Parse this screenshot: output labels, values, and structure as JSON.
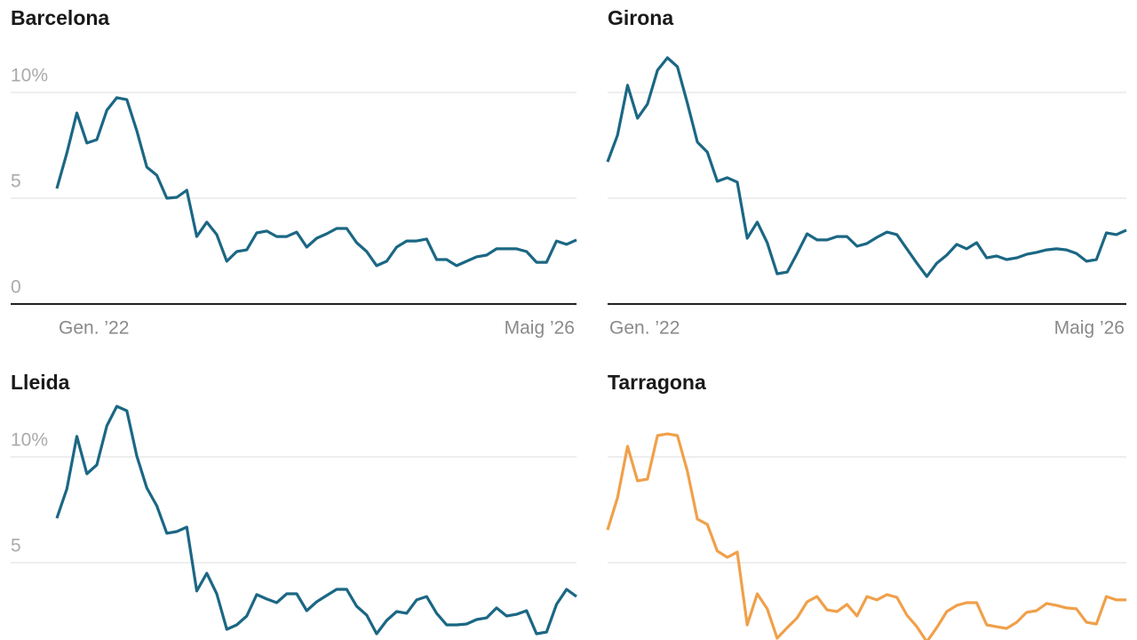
{
  "chart_data": [
    {
      "type": "line",
      "title": "Barcelona",
      "color": "#1b6784",
      "categories": [
        "Gen. ’22",
        null,
        null,
        null,
        null,
        null,
        null,
        null,
        null,
        null,
        null,
        null,
        null,
        null,
        null,
        null,
        null,
        null,
        null,
        null,
        null,
        null,
        null,
        null,
        null,
        null,
        null,
        null,
        null,
        null,
        null,
        null,
        null,
        null,
        null,
        null,
        null,
        null,
        null,
        null,
        null,
        null,
        null,
        null,
        null,
        null,
        null,
        null,
        null,
        null,
        null,
        null,
        "Maig ’26"
      ],
      "values": [
        5.46,
        7.14,
        9.03,
        7.61,
        7.77,
        9.16,
        9.75,
        9.66,
        8.19,
        6.47,
        6.09,
        5.0,
        5.04,
        5.38,
        3.19,
        3.87,
        3.28,
        2.02,
        2.48,
        2.56,
        3.36,
        3.45,
        3.19,
        3.19,
        3.4,
        2.69,
        3.11,
        3.32,
        3.57,
        3.57,
        2.9,
        2.48,
        1.81,
        2.02,
        2.69,
        2.98,
        2.98,
        3.07,
        2.1,
        2.1,
        1.81,
        2.02,
        2.23,
        2.31,
        2.61,
        2.61,
        2.61,
        2.48,
        1.97,
        1.97,
        2.98,
        2.82,
        3.03
      ],
      "ylim": [
        0,
        12.5
      ],
      "yticks": [
        0,
        5,
        {
          "value": 10,
          "label": "10%"
        }
      ],
      "tick_labels": true,
      "grid": true
    },
    {
      "type": "line",
      "title": "Girona",
      "color": "#1b6784",
      "categories": [
        "Gen. ’22",
        null,
        null,
        null,
        null,
        null,
        null,
        null,
        null,
        null,
        null,
        null,
        null,
        null,
        null,
        null,
        null,
        null,
        null,
        null,
        null,
        null,
        null,
        null,
        null,
        null,
        null,
        null,
        null,
        null,
        null,
        null,
        null,
        null,
        null,
        null,
        null,
        null,
        null,
        null,
        null,
        null,
        null,
        null,
        null,
        null,
        null,
        null,
        null,
        null,
        null,
        null,
        "Maig ’26"
      ],
      "values": [
        6.72,
        7.98,
        10.34,
        8.78,
        9.45,
        11.05,
        11.64,
        11.22,
        9.5,
        7.65,
        7.18,
        5.8,
        5.97,
        5.76,
        3.11,
        3.87,
        2.9,
        1.43,
        1.51,
        2.39,
        3.32,
        3.03,
        3.03,
        3.19,
        3.19,
        2.73,
        2.86,
        3.15,
        3.4,
        3.28,
        2.61,
        1.93,
        1.3,
        1.93,
        2.31,
        2.82,
        2.61,
        2.9,
        2.18,
        2.27,
        2.1,
        2.18,
        2.35,
        2.44,
        2.56,
        2.61,
        2.56,
        2.39,
        2.02,
        2.1,
        3.36,
        3.28,
        3.49
      ],
      "ylim": [
        0,
        12.5
      ],
      "yticks": [
        0,
        5,
        10
      ],
      "tick_labels": false,
      "grid": true
    },
    {
      "type": "line",
      "title": "Lleida",
      "color": "#1b6784",
      "values": [
        7.1,
        8.49,
        10.97,
        9.2,
        9.62,
        11.47,
        12.39,
        12.18,
        10.04,
        8.53,
        7.69,
        6.39,
        6.47,
        6.68,
        3.66,
        4.5,
        3.53,
        1.85,
        2.06,
        2.48,
        3.49,
        3.28,
        3.11,
        3.53,
        3.53,
        2.73,
        3.15,
        3.45,
        3.74,
        3.74,
        2.94,
        2.52,
        1.64,
        2.27,
        2.69,
        2.61,
        3.24,
        3.4,
        2.61,
        2.06,
        2.06,
        2.1,
        2.31,
        2.39,
        2.86,
        2.48,
        2.56,
        2.73,
        1.64,
        1.72,
        3.03,
        3.74,
        3.4
      ],
      "ylim": [
        0,
        12.5
      ],
      "yticks": [
        5,
        {
          "value": 10,
          "label": "10%"
        }
      ],
      "tick_labels": true,
      "grid": true
    },
    {
      "type": "line",
      "title": "Tarragona",
      "color": "#f0a04b",
      "values": [
        6.55,
        8.07,
        10.5,
        8.87,
        8.95,
        11.01,
        11.09,
        11.01,
        9.33,
        7.06,
        6.81,
        5.55,
        5.25,
        5.5,
        2.06,
        3.53,
        2.82,
        1.43,
        1.93,
        2.39,
        3.15,
        3.4,
        2.77,
        2.69,
        3.03,
        2.48,
        3.4,
        3.24,
        3.49,
        3.36,
        2.52,
        1.97,
        1.26,
        1.93,
        2.69,
        2.98,
        3.11,
        3.11,
        2.06,
        1.97,
        1.89,
        2.18,
        2.65,
        2.73,
        3.07,
        2.98,
        2.86,
        2.82,
        2.18,
        2.1,
        3.4,
        3.24,
        3.24
      ],
      "ylim": [
        0,
        12.5
      ],
      "yticks": [
        5,
        10
      ],
      "tick_labels": false,
      "grid": true
    }
  ]
}
